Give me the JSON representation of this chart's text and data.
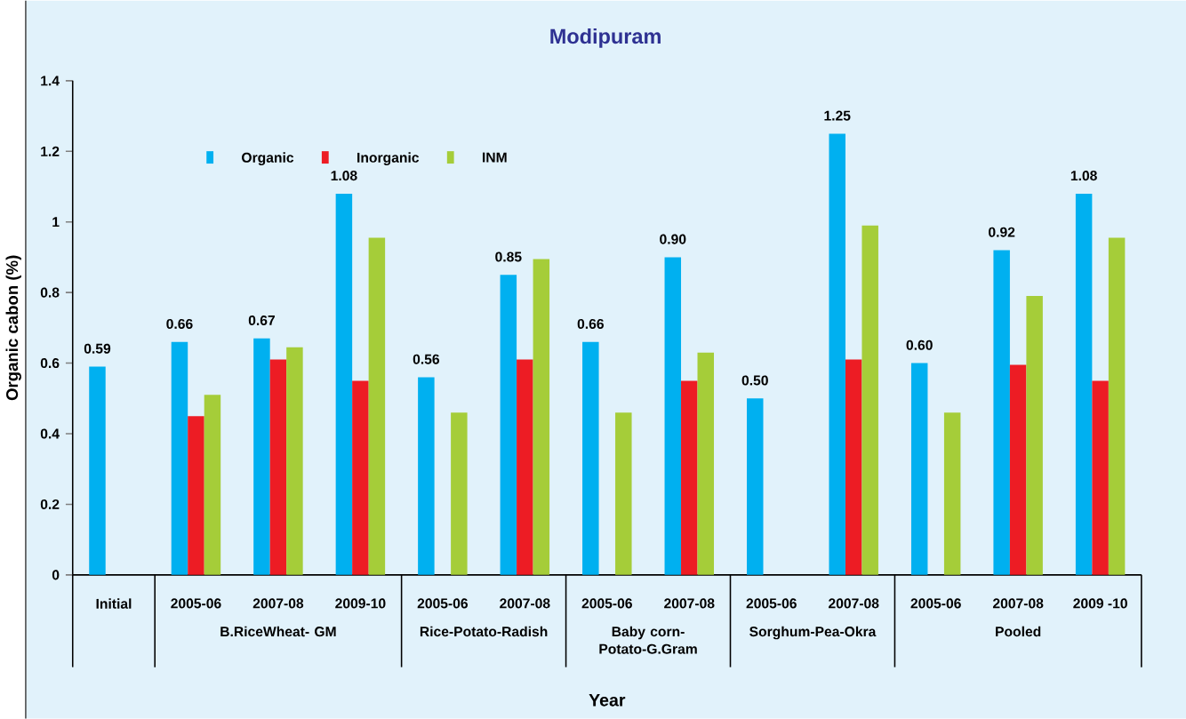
{
  "chart_data": {
    "type": "bar",
    "title": "Modipuram",
    "xlabel": "Year",
    "ylabel": "Organic cabon (%)",
    "categories": [
      "Initial",
      "2005-06",
      "2007-08",
      "2009-10",
      "2005-06",
      "2007-08",
      "2005-06",
      "2007-08",
      "2005-06",
      "2007-08",
      "2005-06",
      "2007-08",
      "2009 -10"
    ],
    "series": [
      {
        "name": "Organic",
        "color": "#00b0f0",
        "values": [
          0.59,
          0.66,
          0.67,
          1.08,
          0.56,
          0.85,
          0.66,
          0.9,
          0.5,
          1.25,
          0.6,
          0.92,
          1.08
        ],
        "value_labels": [
          "0.59",
          "0.66",
          "0.67",
          "1.08",
          "0.56",
          "0.85",
          "0.66",
          "0.90",
          "0.50",
          "1.25",
          "0.60",
          "0.92",
          "1.08"
        ]
      },
      {
        "name": "Inorganic",
        "color": "#ed1c24",
        "values": [
          null,
          0.45,
          0.61,
          0.55,
          null,
          0.61,
          null,
          0.55,
          null,
          0.61,
          null,
          0.595,
          0.55
        ]
      },
      {
        "name": "INM",
        "color": "#a5cd39",
        "values": [
          null,
          0.51,
          0.645,
          0.955,
          0.46,
          0.895,
          0.46,
          0.63,
          null,
          0.99,
          0.46,
          0.79,
          0.955
        ]
      }
    ],
    "annotations": [
      "B.RiceWheat- GM",
      "Rice-Potato-Radish",
      "Baby corn-Potato-G.Gram",
      "Sorghum-Pea-Okra",
      "Pooled"
    ],
    "ylim": [
      0,
      1.4
    ],
    "yticks": [
      0,
      0.2,
      0.4,
      0.6,
      0.8,
      1,
      1.2,
      1.4
    ],
    "legend": "top left",
    "grid": false
  }
}
